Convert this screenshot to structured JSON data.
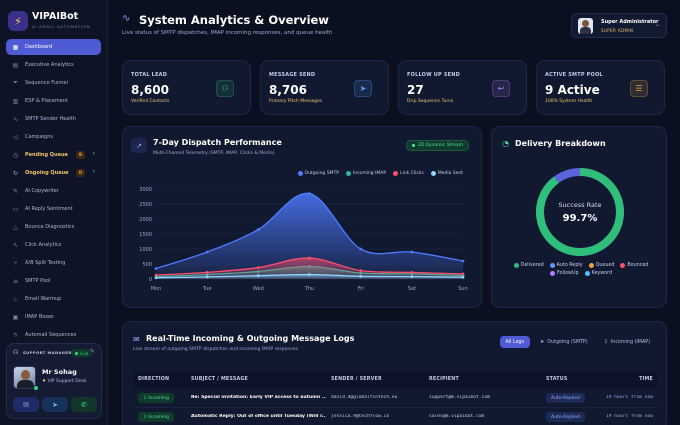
{
  "brand": {
    "name": "VIPAIBot",
    "subtitle": "AI EMAIL AUTOMATION"
  },
  "sidebar": {
    "items": [
      {
        "label": "Dashboard",
        "icon": "grid-icon"
      },
      {
        "label": "Executive Analytics",
        "icon": "chart-icon"
      },
      {
        "label": "Sequence Funnel",
        "icon": "funnel-icon"
      },
      {
        "label": "ESP & Placement",
        "icon": "server-icon"
      },
      {
        "label": "SMTP Sender Health",
        "icon": "pulse-icon"
      },
      {
        "label": "Campaigns",
        "icon": "megaphone-icon"
      },
      {
        "label": "Pending Queue",
        "icon": "clock-icon",
        "badge": "8"
      },
      {
        "label": "Ongoing Queue",
        "icon": "refresh-icon",
        "badge": "0"
      },
      {
        "label": "AI Copywriter",
        "icon": "pen-icon"
      },
      {
        "label": "AI Reply Sentiment",
        "icon": "message-icon"
      },
      {
        "label": "Bounce Diagnostics",
        "icon": "warning-icon"
      },
      {
        "label": "Click Analytics",
        "icon": "cursor-icon"
      },
      {
        "label": "A/B Split Testing",
        "icon": "split-icon"
      },
      {
        "label": "SMTP Pool",
        "icon": "stack-icon"
      },
      {
        "label": "Email Warmup",
        "icon": "flame-icon"
      },
      {
        "label": "IMAP Boxes",
        "icon": "inbox-icon"
      },
      {
        "label": "Automail Sequences",
        "icon": "bolt-icon"
      }
    ]
  },
  "support": {
    "title": "SUPPORT MANAGER",
    "live": "Live",
    "name": "Mr Sohag",
    "role": "VIP Support Desk"
  },
  "header": {
    "title": "System Analytics & Overview",
    "subtitle": "Live status of SMTP dispatches, IMAP incoming responses, and queue health"
  },
  "profile": {
    "name": "Super Administrator",
    "role": "SUPER ADMIN"
  },
  "stats": [
    {
      "label": "TOTAL LEAD",
      "value": "8,600",
      "sub": "Verified Contacts",
      "icon": "users-icon",
      "color": "#2fbf7a"
    },
    {
      "label": "MESSAGE SEND",
      "value": "8,706",
      "sub": "Primary Pitch Messages",
      "icon": "send-icon",
      "color": "#5b9bff"
    },
    {
      "label": "FOLLOW UP SEND",
      "value": "27",
      "sub": "Drip Sequence Turns",
      "icon": "reply-icon",
      "color": "#b37dff"
    },
    {
      "label": "ACTIVE SMTP POOL",
      "value": "9 Active",
      "sub": "100% System Health",
      "icon": "db-icon",
      "color": "#f0a23a"
    }
  ],
  "dispatch": {
    "title": "7-Day Dispatch Performance",
    "subtitle": "Multi-Channel Telemetry (SMTP, IMAP, Clicks & Media)",
    "badge": "3D Dynamic Stream"
  },
  "chart_data": {
    "type": "area",
    "x": [
      "Mon",
      "Tue",
      "Wed",
      "Thu",
      "Fri",
      "Sat",
      "Sun"
    ],
    "ylim": [
      0,
      3000
    ],
    "yticks": [
      "3000",
      "2500",
      "2000",
      "1500",
      "1000",
      "500",
      "0"
    ],
    "legend": "top-right",
    "series": [
      {
        "name": "Outgoing SMTP",
        "color": "#4f7bff",
        "values": [
          350,
          900,
          1650,
          2850,
          1000,
          900,
          600
        ]
      },
      {
        "name": "Incoming IMAP",
        "color": "#2fb9a3",
        "values": [
          80,
          150,
          250,
          420,
          200,
          170,
          120
        ]
      },
      {
        "name": "Link Clicks",
        "color": "#ff4f6d",
        "values": [
          130,
          220,
          380,
          700,
          280,
          220,
          170
        ]
      },
      {
        "name": "Media Sent",
        "color": "#8fd3ff",
        "values": [
          40,
          70,
          110,
          150,
          90,
          80,
          60
        ]
      }
    ]
  },
  "delivery": {
    "title": "Delivery Breakdown",
    "center_label": "Success Rate",
    "center_value": "99.7%",
    "success_fraction": 0.997,
    "legend": [
      {
        "name": "Delivered",
        "color": "#2fbf7a"
      },
      {
        "name": "Auto Reply",
        "color": "#5b9bff"
      },
      {
        "name": "Queued",
        "color": "#f0a23a"
      },
      {
        "name": "Bounced",
        "color": "#ff4f6d"
      },
      {
        "name": "FollowUp",
        "color": "#b37dff"
      },
      {
        "name": "Keyword",
        "color": "#4fc3ff"
      }
    ]
  },
  "logs": {
    "title": "Real-Time Incoming & Outgoing Message Logs",
    "subtitle": "Live stream of outgoing SMTP dispatches and incoming IMAP responses",
    "tabs": [
      "All Logs",
      "Outgoing (SMTP)",
      "Incoming (IMAP)"
    ],
    "columns": [
      "DIRECTION",
      "SUBJECT / MESSAGE",
      "SENDER / SERVER",
      "RECIPIENT",
      "STATUS",
      "TIME"
    ],
    "rows": [
      {
        "direction": "Incoming",
        "subject": "Re: Special invitation: Early VIP access to autumn ...",
        "sender": "david.4@globalfintech.eu",
        "recipient": "support@m.vipaibot.com",
        "status": "Auto-Replied",
        "time": "19 hours from now"
      },
      {
        "direction": "Incoming",
        "subject": "Automatic Reply: Out of office until Tuesday (Will r...",
        "sender": "jessica.9@techflow.io",
        "recipient": "sales@m.vipaibot.com",
        "status": "Auto-Replied",
        "time": "19 hours from now"
      }
    ]
  }
}
